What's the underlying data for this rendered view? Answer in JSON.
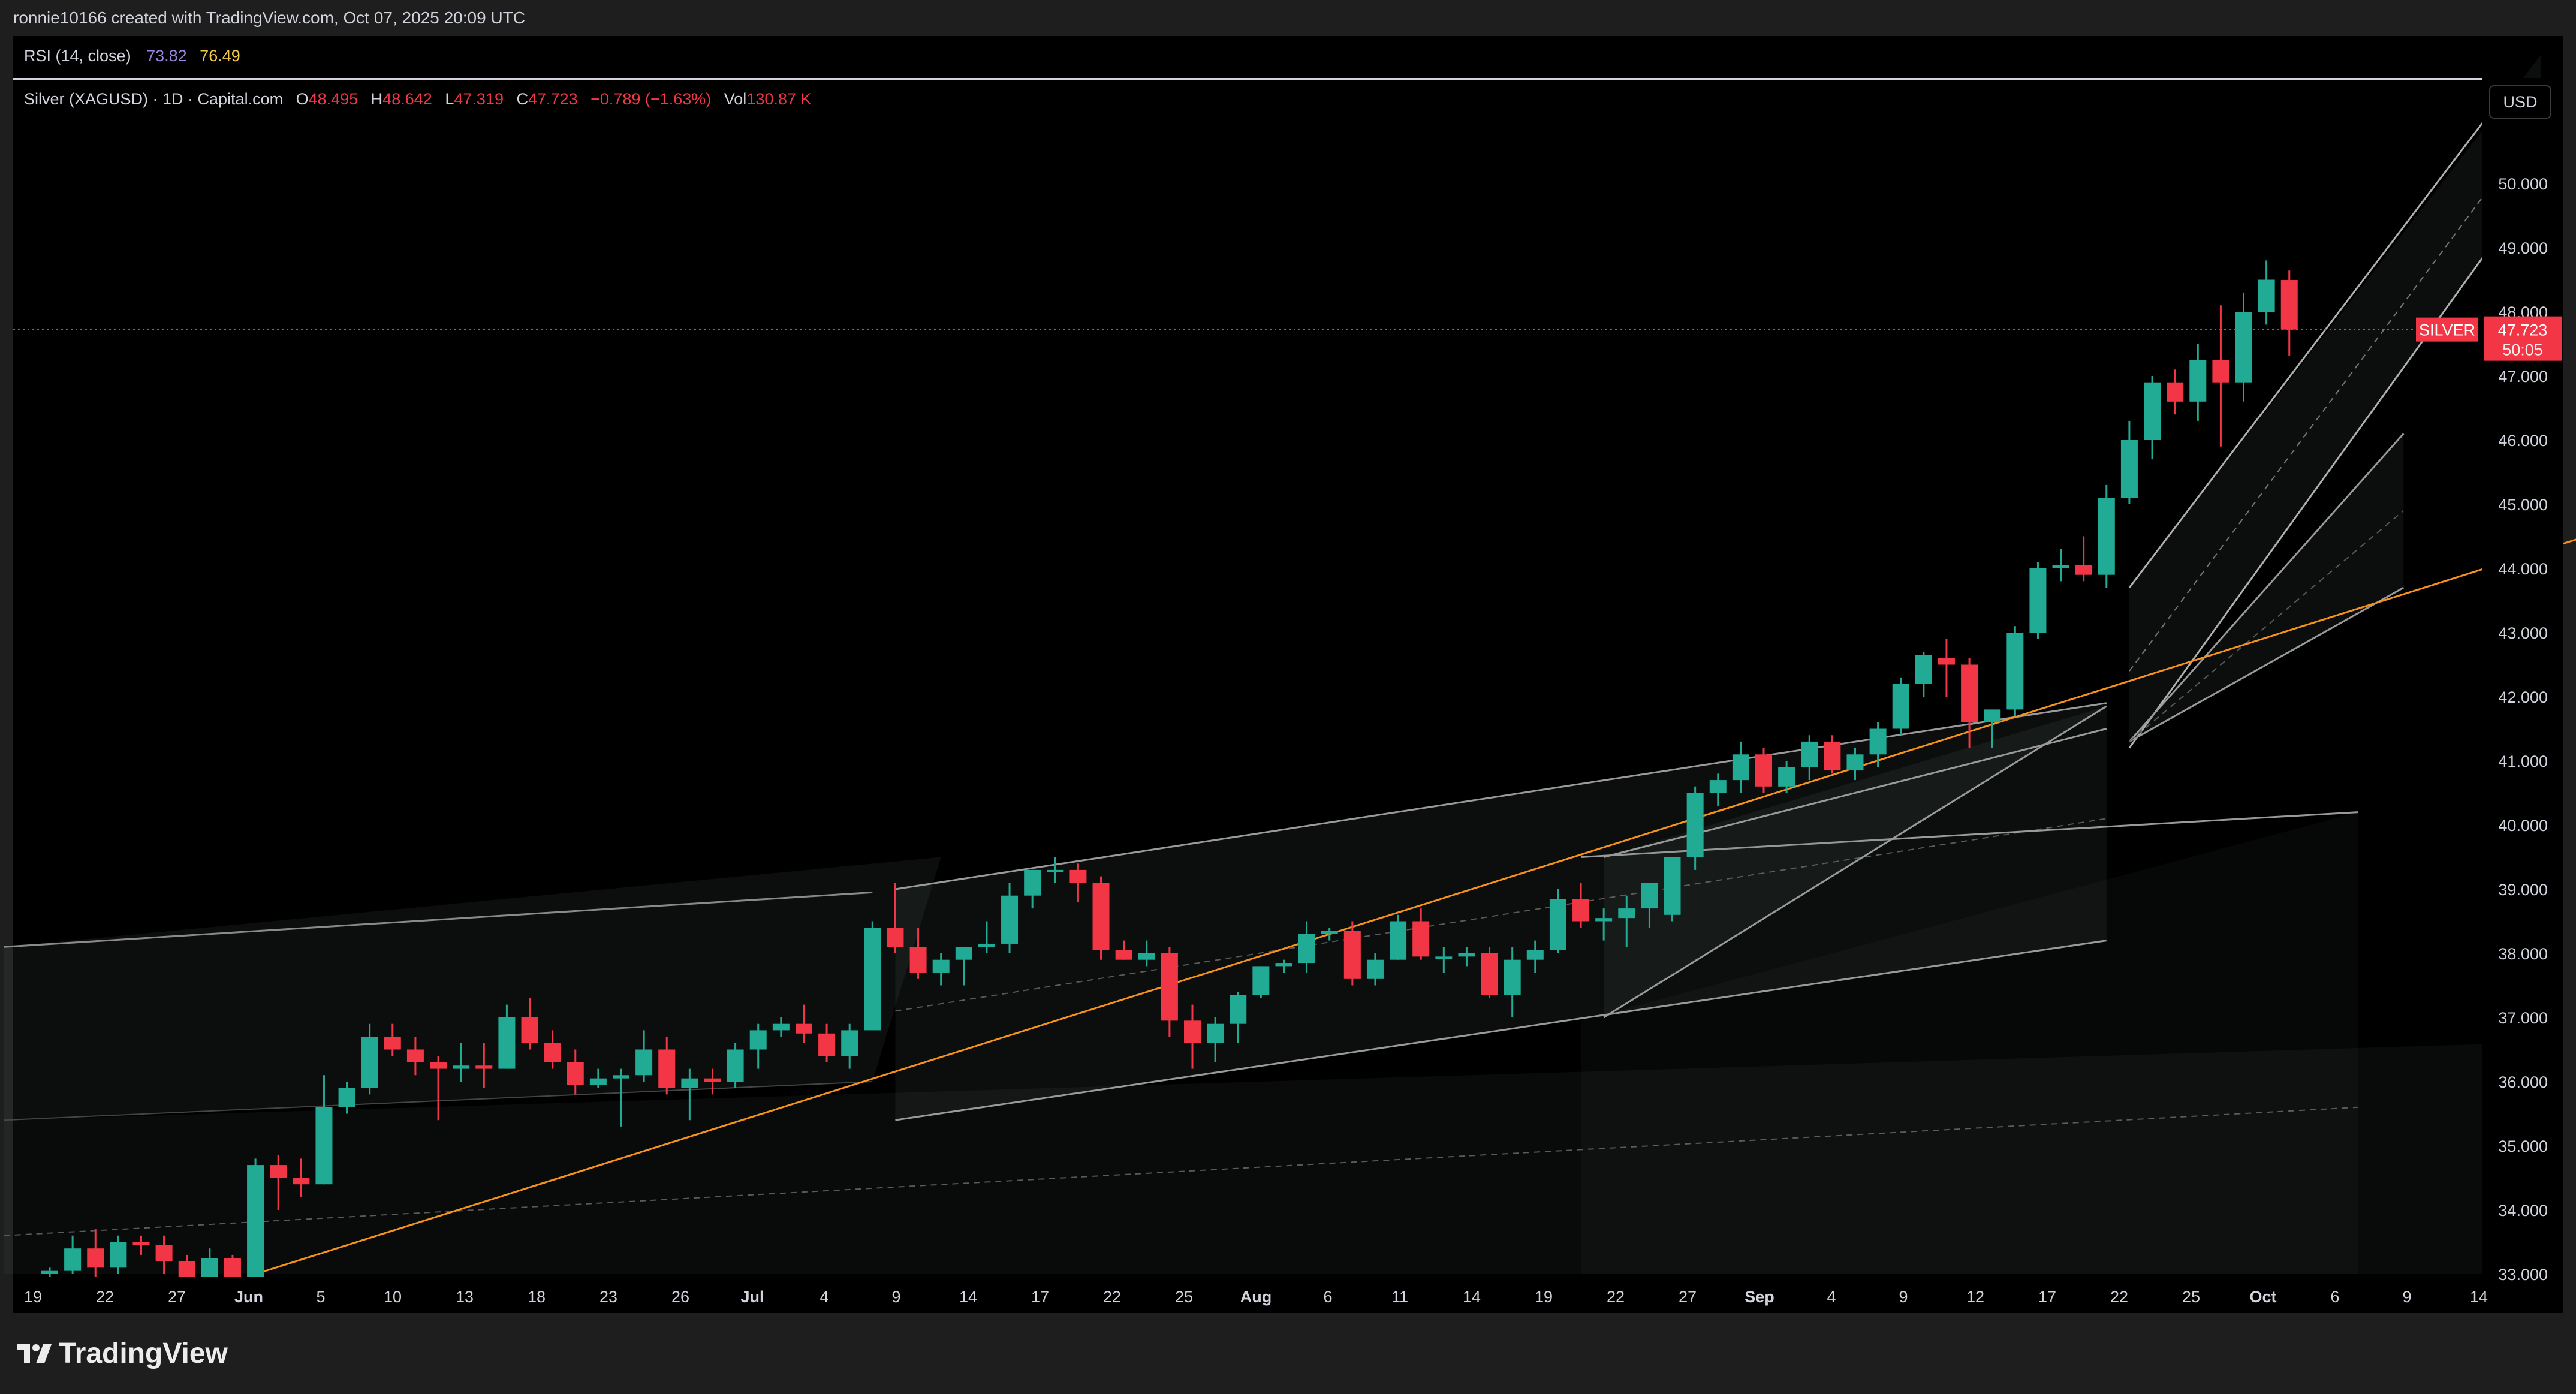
{
  "header": {
    "attribution": "ronnie10166 created with TradingView.com, Oct 07, 2025 20:09 UTC"
  },
  "rsi": {
    "label": "RSI (14, close)",
    "value1": "73.82",
    "value2": "76.49"
  },
  "legend": {
    "symbol": "Silver (XAGUSD) · 1D · Capital.com",
    "o_label": "O",
    "o": "48.495",
    "h_label": "H",
    "h": "48.642",
    "l_label": "L",
    "l": "47.319",
    "c_label": "C",
    "c": "47.723",
    "change": "−0.789 (−1.63%)",
    "vol_label": "Vol",
    "vol": "130.87 K"
  },
  "currency_button": "USD",
  "price_tag": {
    "name": "SILVER",
    "price": "47.723",
    "countdown": "50:05"
  },
  "footer": {
    "brand": "TradingView"
  },
  "colors": {
    "up": "#22ab94",
    "down": "#f23645",
    "background": "#000000",
    "trendline": "#f7931a"
  },
  "chart_data": {
    "type": "candlestick",
    "title": "Silver (XAGUSD) · 1D · Capital.com",
    "ylim": [
      33,
      51.2
    ],
    "y_ticks": [
      "33.000",
      "34.000",
      "35.000",
      "36.000",
      "37.000",
      "38.000",
      "39.000",
      "40.000",
      "41.000",
      "42.000",
      "43.000",
      "44.000",
      "45.000",
      "46.000",
      "47.000",
      "48.000",
      "49.000",
      "50.000"
    ],
    "x_ticks": [
      "19",
      "22",
      "27",
      "Jun",
      "5",
      "10",
      "13",
      "18",
      "23",
      "26",
      "Jul",
      "4",
      "9",
      "14",
      "17",
      "22",
      "25",
      "Aug",
      "6",
      "11",
      "14",
      "19",
      "22",
      "27",
      "Sep",
      "4",
      "9",
      "12",
      "17",
      "22",
      "25",
      "Oct",
      "6",
      "9",
      "14"
    ],
    "last_price": 47.723,
    "candles": [
      {
        "o": 33.0,
        "h": 33.1,
        "l": 32.9,
        "c": 33.05
      },
      {
        "o": 33.05,
        "h": 33.6,
        "l": 33.0,
        "c": 33.4
      },
      {
        "o": 33.4,
        "h": 33.7,
        "l": 32.9,
        "c": 33.1
      },
      {
        "o": 33.1,
        "h": 33.6,
        "l": 33.0,
        "c": 33.5
      },
      {
        "o": 33.5,
        "h": 33.6,
        "l": 33.3,
        "c": 33.45
      },
      {
        "o": 33.45,
        "h": 33.6,
        "l": 33.0,
        "c": 33.2
      },
      {
        "o": 33.2,
        "h": 33.3,
        "l": 32.9,
        "c": 32.95
      },
      {
        "o": 32.95,
        "h": 33.4,
        "l": 32.9,
        "c": 33.25
      },
      {
        "o": 33.25,
        "h": 33.3,
        "l": 32.9,
        "c": 32.95
      },
      {
        "o": 32.95,
        "h": 34.8,
        "l": 32.9,
        "c": 34.7
      },
      {
        "o": 34.7,
        "h": 34.85,
        "l": 34.0,
        "c": 34.5
      },
      {
        "o": 34.5,
        "h": 34.8,
        "l": 34.2,
        "c": 34.4
      },
      {
        "o": 34.4,
        "h": 36.1,
        "l": 34.4,
        "c": 35.6
      },
      {
        "o": 35.6,
        "h": 36.0,
        "l": 35.5,
        "c": 35.9
      },
      {
        "o": 35.9,
        "h": 36.9,
        "l": 35.8,
        "c": 36.7
      },
      {
        "o": 36.7,
        "h": 36.9,
        "l": 36.4,
        "c": 36.5
      },
      {
        "o": 36.5,
        "h": 36.7,
        "l": 36.1,
        "c": 36.3
      },
      {
        "o": 36.3,
        "h": 36.4,
        "l": 35.4,
        "c": 36.2
      },
      {
        "o": 36.2,
        "h": 36.6,
        "l": 36.0,
        "c": 36.25
      },
      {
        "o": 36.25,
        "h": 36.6,
        "l": 35.9,
        "c": 36.2
      },
      {
        "o": 36.2,
        "h": 37.2,
        "l": 36.2,
        "c": 37.0
      },
      {
        "o": 37.0,
        "h": 37.3,
        "l": 36.5,
        "c": 36.6
      },
      {
        "o": 36.6,
        "h": 36.8,
        "l": 36.2,
        "c": 36.3
      },
      {
        "o": 36.3,
        "h": 36.5,
        "l": 35.8,
        "c": 35.95
      },
      {
        "o": 35.95,
        "h": 36.2,
        "l": 35.9,
        "c": 36.05
      },
      {
        "o": 36.05,
        "h": 36.2,
        "l": 35.3,
        "c": 36.1
      },
      {
        "o": 36.1,
        "h": 36.8,
        "l": 36.0,
        "c": 36.5
      },
      {
        "o": 36.5,
        "h": 36.7,
        "l": 35.8,
        "c": 35.9
      },
      {
        "o": 35.9,
        "h": 36.2,
        "l": 35.4,
        "c": 36.05
      },
      {
        "o": 36.05,
        "h": 36.2,
        "l": 35.8,
        "c": 36.0
      },
      {
        "o": 36.0,
        "h": 36.6,
        "l": 35.9,
        "c": 36.5
      },
      {
        "o": 36.5,
        "h": 36.9,
        "l": 36.2,
        "c": 36.8
      },
      {
        "o": 36.8,
        "h": 37.0,
        "l": 36.7,
        "c": 36.9
      },
      {
        "o": 36.9,
        "h": 37.2,
        "l": 36.6,
        "c": 36.75
      },
      {
        "o": 36.75,
        "h": 36.9,
        "l": 36.3,
        "c": 36.4
      },
      {
        "o": 36.4,
        "h": 36.9,
        "l": 36.2,
        "c": 36.8
      },
      {
        "o": 36.8,
        "h": 38.5,
        "l": 36.8,
        "c": 38.4
      },
      {
        "o": 38.4,
        "h": 39.1,
        "l": 38.0,
        "c": 38.1
      },
      {
        "o": 38.1,
        "h": 38.4,
        "l": 37.6,
        "c": 37.7
      },
      {
        "o": 37.7,
        "h": 38.0,
        "l": 37.5,
        "c": 37.9
      },
      {
        "o": 37.9,
        "h": 38.1,
        "l": 37.5,
        "c": 38.1
      },
      {
        "o": 38.1,
        "h": 38.5,
        "l": 38.0,
        "c": 38.15
      },
      {
        "o": 38.15,
        "h": 39.1,
        "l": 38.0,
        "c": 38.9
      },
      {
        "o": 38.9,
        "h": 39.3,
        "l": 38.7,
        "c": 39.3
      },
      {
        "o": 39.3,
        "h": 39.5,
        "l": 39.1,
        "c": 39.3
      },
      {
        "o": 39.3,
        "h": 39.4,
        "l": 38.8,
        "c": 39.1
      },
      {
        "o": 39.1,
        "h": 39.2,
        "l": 37.9,
        "c": 38.05
      },
      {
        "o": 38.05,
        "h": 38.2,
        "l": 37.9,
        "c": 37.9
      },
      {
        "o": 37.9,
        "h": 38.2,
        "l": 37.8,
        "c": 38.0
      },
      {
        "o": 38.0,
        "h": 38.1,
        "l": 36.7,
        "c": 36.95
      },
      {
        "o": 36.95,
        "h": 37.2,
        "l": 36.2,
        "c": 36.6
      },
      {
        "o": 36.6,
        "h": 37.0,
        "l": 36.3,
        "c": 36.9
      },
      {
        "o": 36.9,
        "h": 37.4,
        "l": 36.6,
        "c": 37.35
      },
      {
        "o": 37.35,
        "h": 37.8,
        "l": 37.3,
        "c": 37.8
      },
      {
        "o": 37.8,
        "h": 37.9,
        "l": 37.7,
        "c": 37.85
      },
      {
        "o": 37.85,
        "h": 38.5,
        "l": 37.7,
        "c": 38.3
      },
      {
        "o": 38.3,
        "h": 38.4,
        "l": 38.2,
        "c": 38.35
      },
      {
        "o": 38.35,
        "h": 38.5,
        "l": 37.5,
        "c": 37.6
      },
      {
        "o": 37.6,
        "h": 38.0,
        "l": 37.5,
        "c": 37.9
      },
      {
        "o": 37.9,
        "h": 38.6,
        "l": 37.9,
        "c": 38.5
      },
      {
        "o": 38.5,
        "h": 38.7,
        "l": 37.9,
        "c": 37.95
      },
      {
        "o": 37.95,
        "h": 38.1,
        "l": 37.7,
        "c": 37.95
      },
      {
        "o": 37.95,
        "h": 38.1,
        "l": 37.8,
        "c": 38.0
      },
      {
        "o": 38.0,
        "h": 38.1,
        "l": 37.3,
        "c": 37.35
      },
      {
        "o": 37.35,
        "h": 38.1,
        "l": 37.0,
        "c": 37.9
      },
      {
        "o": 37.9,
        "h": 38.2,
        "l": 37.7,
        "c": 38.05
      },
      {
        "o": 38.05,
        "h": 39.0,
        "l": 38.0,
        "c": 38.85
      },
      {
        "o": 38.85,
        "h": 39.1,
        "l": 38.4,
        "c": 38.5
      },
      {
        "o": 38.5,
        "h": 38.7,
        "l": 38.2,
        "c": 38.55
      },
      {
        "o": 38.55,
        "h": 38.9,
        "l": 38.1,
        "c": 38.7
      },
      {
        "o": 38.7,
        "h": 39.1,
        "l": 38.4,
        "c": 39.1
      },
      {
        "o": 38.6,
        "h": 39.5,
        "l": 38.5,
        "c": 39.5
      },
      {
        "o": 39.5,
        "h": 40.6,
        "l": 39.3,
        "c": 40.5
      },
      {
        "o": 40.5,
        "h": 40.8,
        "l": 40.3,
        "c": 40.7
      },
      {
        "o": 40.7,
        "h": 41.3,
        "l": 40.5,
        "c": 41.1
      },
      {
        "o": 41.1,
        "h": 41.2,
        "l": 40.5,
        "c": 40.6
      },
      {
        "o": 40.6,
        "h": 41.0,
        "l": 40.5,
        "c": 40.9
      },
      {
        "o": 40.9,
        "h": 41.4,
        "l": 40.7,
        "c": 41.3
      },
      {
        "o": 41.3,
        "h": 41.4,
        "l": 40.8,
        "c": 40.85
      },
      {
        "o": 40.85,
        "h": 41.2,
        "l": 40.7,
        "c": 41.1
      },
      {
        "o": 41.1,
        "h": 41.6,
        "l": 40.9,
        "c": 41.5
      },
      {
        "o": 41.5,
        "h": 42.3,
        "l": 41.4,
        "c": 42.2
      },
      {
        "o": 42.2,
        "h": 42.7,
        "l": 42.0,
        "c": 42.65
      },
      {
        "o": 42.6,
        "h": 42.9,
        "l": 42.0,
        "c": 42.5
      },
      {
        "o": 42.5,
        "h": 42.6,
        "l": 41.2,
        "c": 41.6
      },
      {
        "o": 41.6,
        "h": 41.8,
        "l": 41.2,
        "c": 41.8
      },
      {
        "o": 41.8,
        "h": 43.1,
        "l": 41.7,
        "c": 43.0
      },
      {
        "o": 43.0,
        "h": 44.1,
        "l": 42.9,
        "c": 44.0
      },
      {
        "o": 44.0,
        "h": 44.3,
        "l": 43.8,
        "c": 44.05
      },
      {
        "o": 44.05,
        "h": 44.5,
        "l": 43.8,
        "c": 43.9
      },
      {
        "o": 43.9,
        "h": 45.3,
        "l": 43.7,
        "c": 45.1
      },
      {
        "o": 45.1,
        "h": 46.3,
        "l": 45.0,
        "c": 46.0
      },
      {
        "o": 46.0,
        "h": 47.0,
        "l": 45.7,
        "c": 46.9
      },
      {
        "o": 46.9,
        "h": 47.1,
        "l": 46.4,
        "c": 46.6
      },
      {
        "o": 46.6,
        "h": 47.5,
        "l": 46.3,
        "c": 47.25
      },
      {
        "o": 47.25,
        "h": 48.1,
        "l": 45.9,
        "c": 46.9
      },
      {
        "o": 46.9,
        "h": 48.3,
        "l": 46.6,
        "c": 48.0
      },
      {
        "o": 48.0,
        "h": 48.8,
        "l": 47.8,
        "c": 48.5
      },
      {
        "o": 48.495,
        "h": 48.642,
        "l": 47.319,
        "c": 47.723
      }
    ]
  }
}
